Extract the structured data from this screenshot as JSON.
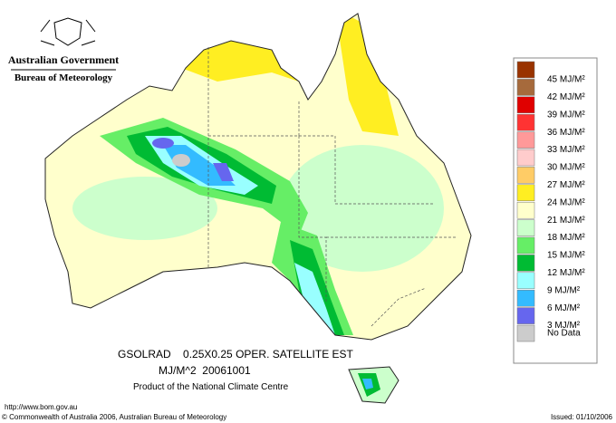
{
  "header": {
    "government": "Australian Government",
    "bureau": "Bureau of Meteorology"
  },
  "legend": {
    "items": [
      {
        "label": "45 MJ/M²",
        "color": "#993300"
      },
      {
        "label": "42 MJ/M²",
        "color": "#a66a3c"
      },
      {
        "label": "39 MJ/M²",
        "color": "#e00000"
      },
      {
        "label": "36 MJ/M²",
        "color": "#ff3333"
      },
      {
        "label": "33 MJ/M²",
        "color": "#ff9999"
      },
      {
        "label": "30 MJ/M²",
        "color": "#ffcccc"
      },
      {
        "label": "27 MJ/M²",
        "color": "#ffcc66"
      },
      {
        "label": "24 MJ/M²",
        "color": "#ffee22"
      },
      {
        "label": "21 MJ/M²",
        "color": "#ffffcc"
      },
      {
        "label": "18 MJ/M²",
        "color": "#ccffcc"
      },
      {
        "label": "15 MJ/M²",
        "color": "#66ee66"
      },
      {
        "label": "12 MJ/M²",
        "color": "#00bb33"
      },
      {
        "label": "9 MJ/M²",
        "color": "#99ffff"
      },
      {
        "label": "6 MJ/M²",
        "color": "#33bbff"
      },
      {
        "label": "3 MJ/M²",
        "color": "#6666ee"
      },
      {
        "label": "No Data",
        "color": "#cccccc"
      }
    ]
  },
  "caption": {
    "line1": "GSOLRAD    0.25X0.25 OPER. SATELLITE EST",
    "line2": "MJ/M^2  20061001",
    "line3": "Product of the National Climate Centre"
  },
  "footer": {
    "url": "http://www.bom.gov.au",
    "copyright": "© Commonwealth of Australia 2006, Australian Bureau of Meteorology",
    "issued": "Issued: 01/10/2006"
  }
}
